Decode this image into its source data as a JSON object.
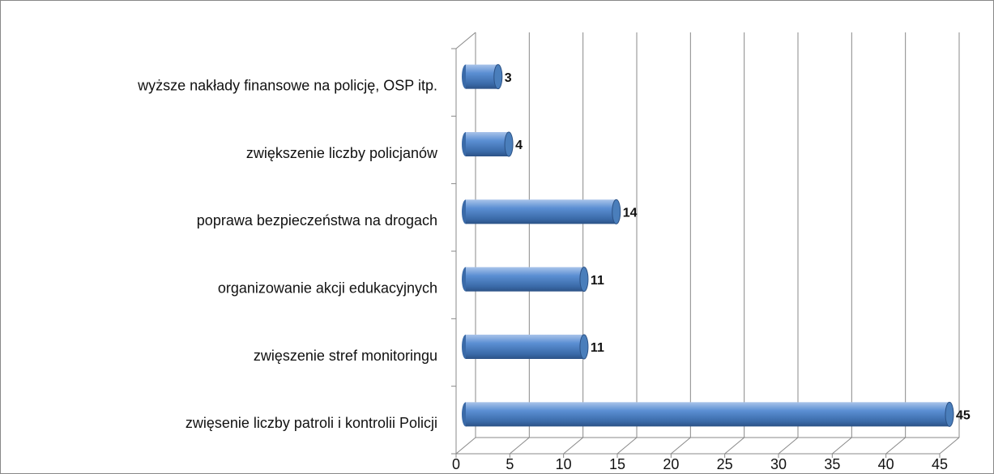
{
  "chart_data": {
    "type": "bar",
    "orientation": "horizontal",
    "categories": [
      "wyższe nakłady finansowe na policję, OSP itp.",
      "zwiększenie liczby policjanów",
      "poprawa bezpieczeństwa na drogach",
      "organizowanie akcji edukacyjnych",
      "zwięszenie stref monitoringu",
      "zwięsenie liczby patroli i kontrolii Policji"
    ],
    "values": [
      3,
      4,
      14,
      11,
      11,
      45
    ],
    "color": "#4a7ebb",
    "xlim": [
      0,
      45
    ],
    "xticks": [
      0,
      5,
      10,
      15,
      20,
      25,
      30,
      35,
      40,
      45
    ],
    "grid": true
  }
}
